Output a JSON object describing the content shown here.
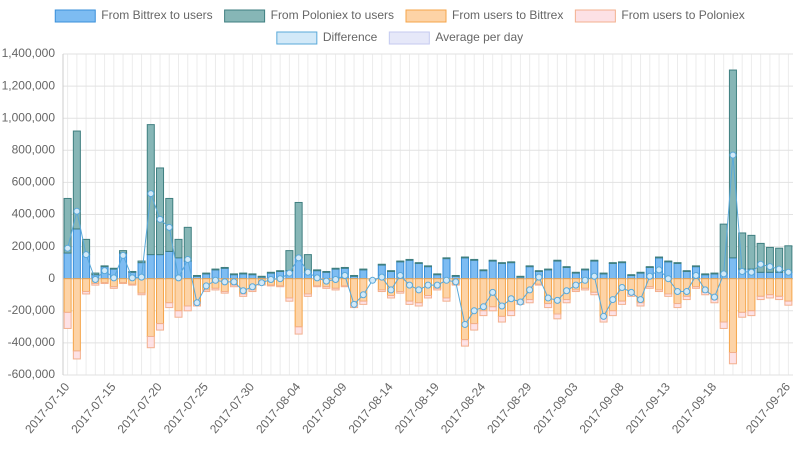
{
  "chart_data": {
    "type": "bar",
    "categories": [
      "2017-07-10",
      null,
      null,
      null,
      null,
      "2017-07-15",
      null,
      null,
      null,
      null,
      "2017-07-20",
      null,
      null,
      null,
      null,
      "2017-07-25",
      null,
      null,
      null,
      null,
      "2017-07-30",
      null,
      null,
      null,
      null,
      "2017-08-04",
      null,
      null,
      null,
      null,
      "2017-08-09",
      null,
      null,
      null,
      null,
      "2017-08-14",
      null,
      null,
      null,
      null,
      "2017-08-19",
      null,
      null,
      null,
      null,
      "2017-08-24",
      null,
      null,
      null,
      null,
      "2017-08-29",
      null,
      null,
      null,
      null,
      "2017-09-03",
      null,
      null,
      null,
      null,
      "2017-09-08",
      null,
      null,
      null,
      null,
      "2017-09-13",
      null,
      null,
      null,
      null,
      "2017-09-18",
      null,
      null,
      null,
      null,
      null,
      null,
      null,
      "2017-09-26"
    ],
    "series": [
      {
        "name": "From Bittrex to users",
        "kind": "bar",
        "stack": "in",
        "color": "#7dbcf2",
        "border": "#3a8fd9",
        "values": [
          160000,
          310000,
          150000,
          25000,
          75000,
          60000,
          160000,
          40000,
          100000,
          150000,
          150000,
          170000,
          130000,
          110000,
          15000,
          30000,
          55000,
          65000,
          25000,
          30000,
          25000,
          10000,
          35000,
          45000,
          50000,
          130000,
          40000,
          50000,
          40000,
          60000,
          65000,
          15000,
          55000,
          0,
          85000,
          45000,
          105000,
          115000,
          95000,
          75000,
          25000,
          125000,
          15000,
          130000,
          115000,
          50000,
          110000,
          95000,
          100000,
          10000,
          75000,
          45000,
          55000,
          110000,
          70000,
          35000,
          55000,
          110000,
          30000,
          95000,
          100000,
          20000,
          35000,
          70000,
          130000,
          105000,
          95000,
          45000,
          75000,
          25000,
          30000,
          30000,
          130000,
          60000,
          60000,
          40000,
          40000,
          40000,
          40000
        ]
      },
      {
        "name": "From Poloniex to users",
        "kind": "bar",
        "stack": "in",
        "color": "#86b6b6",
        "border": "#3f7f80",
        "values": [
          340000,
          610000,
          95000,
          10000,
          5000,
          5000,
          15000,
          5000,
          10000,
          810000,
          540000,
          330000,
          115000,
          210000,
          5000,
          5000,
          5000,
          5000,
          5000,
          5000,
          5000,
          5000,
          5000,
          5000,
          125000,
          345000,
          110000,
          5000,
          5000,
          5000,
          5000,
          5000,
          5000,
          0,
          5000,
          5000,
          5000,
          5000,
          5000,
          5000,
          5000,
          5000,
          5000,
          5000,
          5000,
          5000,
          5000,
          5000,
          5000,
          5000,
          5000,
          5000,
          5000,
          5000,
          5000,
          5000,
          5000,
          5000,
          5000,
          5000,
          5000,
          5000,
          5000,
          5000,
          5000,
          5000,
          5000,
          5000,
          5000,
          5000,
          5000,
          310000,
          1170000,
          225000,
          210000,
          180000,
          155000,
          150000,
          165000
        ]
      },
      {
        "name": "From users to Bittrex",
        "kind": "bar",
        "stack": "out",
        "color": "#fdd3a6",
        "border": "#f5a54a",
        "values": [
          -210000,
          -450000,
          -80000,
          -30000,
          -25000,
          -50000,
          -25000,
          -35000,
          -90000,
          -360000,
          -280000,
          -150000,
          -200000,
          -170000,
          -150000,
          -70000,
          -60000,
          -80000,
          -40000,
          -95000,
          -70000,
          -35000,
          -40000,
          -45000,
          -120000,
          -300000,
          -95000,
          -45000,
          -50000,
          -60000,
          -45000,
          -160000,
          -140000,
          -10000,
          -70000,
          -105000,
          -80000,
          -140000,
          -150000,
          -105000,
          -60000,
          -120000,
          -35000,
          -380000,
          -280000,
          -200000,
          -175000,
          -235000,
          -200000,
          -140000,
          -130000,
          -35000,
          -155000,
          -220000,
          -130000,
          -70000,
          -60000,
          -85000,
          -235000,
          -200000,
          -140000,
          -95000,
          -150000,
          -50000,
          -70000,
          -95000,
          -155000,
          -110000,
          -50000,
          -85000,
          -130000,
          -270000,
          -460000,
          -210000,
          -200000,
          -110000,
          -100000,
          -110000,
          -140000
        ]
      },
      {
        "name": "From users to Poloniex",
        "kind": "bar",
        "stack": "out",
        "color": "#fde1e5",
        "border": "#f3b08f",
        "values": [
          -100000,
          -50000,
          -15000,
          -10000,
          -5000,
          -10000,
          -5000,
          -5000,
          -10000,
          -70000,
          -40000,
          -30000,
          -40000,
          -30000,
          -20000,
          -10000,
          -10000,
          -10000,
          -10000,
          -15000,
          -10000,
          -5000,
          -5000,
          -5000,
          -20000,
          -45000,
          -15000,
          -5000,
          -10000,
          -10000,
          -5000,
          -20000,
          -20000,
          0,
          -10000,
          -15000,
          -10000,
          -20000,
          -20000,
          -15000,
          -10000,
          -20000,
          -5000,
          -40000,
          -40000,
          -30000,
          -25000,
          -35000,
          -30000,
          -20000,
          -20000,
          -5000,
          -25000,
          -30000,
          -20000,
          -10000,
          -10000,
          -15000,
          -35000,
          -30000,
          -20000,
          -15000,
          -20000,
          -10000,
          -10000,
          -15000,
          -25000,
          -20000,
          -10000,
          -15000,
          -20000,
          -40000,
          -70000,
          -30000,
          -30000,
          -20000,
          -20000,
          -20000,
          -25000
        ]
      },
      {
        "name": "Difference",
        "kind": "line",
        "color": "#d2e9f8",
        "border": "#5aa9d9",
        "values": [
          190000,
          420000,
          150000,
          -5000,
          50000,
          5000,
          145000,
          5000,
          10000,
          530000,
          370000,
          320000,
          5000,
          120000,
          -150000,
          -45000,
          -10000,
          -20000,
          -20000,
          -75000,
          -50000,
          -25000,
          -5000,
          0,
          35000,
          130000,
          40000,
          5000,
          -15000,
          -5000,
          20000,
          -160000,
          -100000,
          -10000,
          10000,
          -70000,
          20000,
          -40000,
          -70000,
          -40000,
          -40000,
          -10000,
          -20000,
          -285000,
          -200000,
          -175000,
          -85000,
          -170000,
          -125000,
          -145000,
          -70000,
          10000,
          -120000,
          -135000,
          -75000,
          -40000,
          -10000,
          15000,
          -235000,
          -130000,
          -55000,
          -85000,
          -130000,
          15000,
          55000,
          0,
          -80000,
          -80000,
          20000,
          -70000,
          -115000,
          30000,
          770000,
          45000,
          40000,
          90000,
          75000,
          60000,
          40000
        ]
      }
    ],
    "legend_extra": [
      {
        "name": "Average per day",
        "color": "#e6e8f9",
        "border": "#c5caf0"
      }
    ],
    "ylim": [
      -600000,
      1400000
    ],
    "yticks": [
      {
        "value": -600000,
        "label": "-600,000"
      },
      {
        "value": -400000,
        "label": "-400,000"
      },
      {
        "value": -200000,
        "label": "-200,000"
      },
      0,
      {
        "value": 200000,
        "label": "200,000"
      },
      {
        "value": 400000,
        "label": "400,000"
      },
      {
        "value": 600000,
        "label": "600,000"
      },
      {
        "value": 800000,
        "label": "800,000"
      },
      {
        "value": 1000000,
        "label": "1,000,000"
      },
      {
        "value": 1200000,
        "label": "1,200,000"
      },
      {
        "value": 1400000,
        "label": "1,400,000"
      }
    ],
    "grid": true
  }
}
